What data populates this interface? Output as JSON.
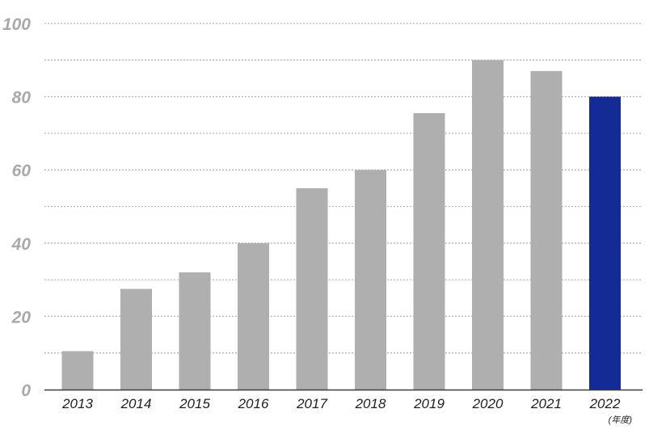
{
  "chart_data": {
    "type": "bar",
    "title": "",
    "xlabel": "",
    "ylabel": "",
    "x_unit_label": "(年度)",
    "categories": [
      "2013",
      "2014",
      "2015",
      "2016",
      "2017",
      "2018",
      "2019",
      "2020",
      "2021",
      "2022"
    ],
    "values": [
      10.5,
      27.5,
      32,
      40,
      55,
      60,
      75.5,
      90,
      87,
      80
    ],
    "ylim": [
      0,
      100
    ],
    "y_major_ticks": [
      "0",
      "20",
      "40",
      "60",
      "80",
      "100"
    ],
    "grid": "dotted horizontal lines every 10 units",
    "colors": {
      "bar_default": "#afafaf",
      "bar_highlight": "#142b96",
      "gridline": "#b5b5b5",
      "axis": "#3a3a3a",
      "y_tick_text": "#a9a9a9",
      "x_tick_text": "#1f1f1f"
    },
    "highlight_category": "2022"
  }
}
